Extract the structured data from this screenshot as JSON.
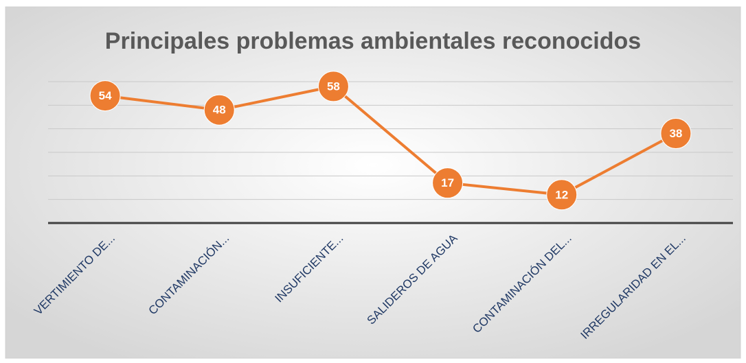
{
  "chart_data": {
    "type": "line",
    "title": "Principales problemas ambientales reconocidos",
    "categories": [
      "VERTIMIENTO DE...",
      "CONTAMINACIÓN...",
      "INSUFICIENTE...",
      "SALIDEROS DE AGUA",
      "CONTAMINACIÓN DEL...",
      "IRREGULARIDAD EN EL..."
    ],
    "values": [
      54,
      48,
      58,
      17,
      12,
      38
    ],
    "color": "#ed7d31",
    "ylim": [
      0,
      60
    ],
    "yticks": [
      0,
      10,
      20,
      30,
      40,
      50,
      60
    ],
    "grid": true
  }
}
